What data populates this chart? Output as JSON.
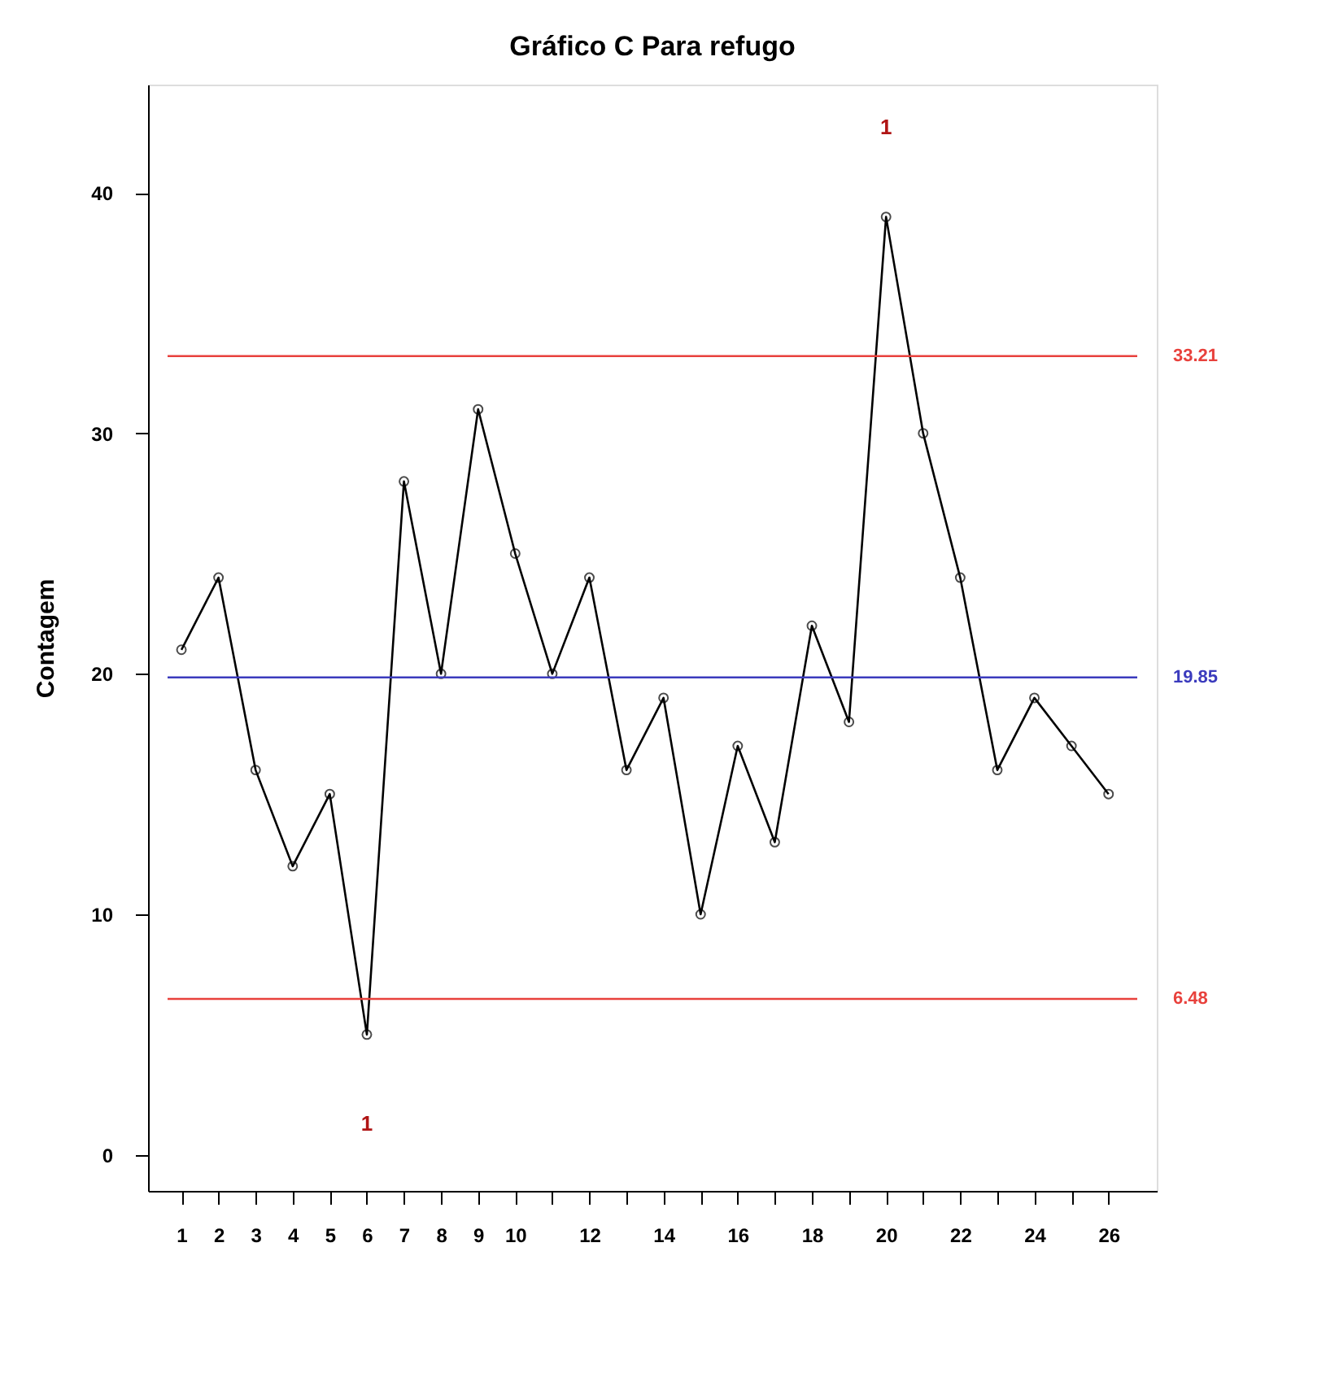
{
  "chart_data": {
    "type": "line",
    "title": "Gráfico C Para refugo",
    "ylabel": "Contagem",
    "x": [
      1,
      2,
      3,
      4,
      5,
      6,
      7,
      8,
      9,
      10,
      11,
      12,
      13,
      14,
      15,
      16,
      17,
      18,
      19,
      20,
      21,
      22,
      23,
      24,
      25,
      26
    ],
    "series": [
      {
        "color": "#000000",
        "values": [
          21,
          24,
          16,
          12,
          15,
          5,
          28,
          20,
          31,
          25,
          20,
          24,
          16,
          19,
          10,
          17,
          13,
          22,
          18,
          39,
          30,
          24,
          16,
          19,
          17,
          15
        ]
      }
    ],
    "xlim": [
      0.1,
      27.3
    ],
    "ylim": [
      -1.5,
      44.5
    ],
    "xticks": [
      1,
      2,
      3,
      4,
      5,
      6,
      7,
      8,
      9,
      10,
      {
        "value": 11,
        "label": null
      },
      12,
      {
        "value": 13,
        "label": null
      },
      14,
      {
        "value": 15,
        "label": null
      },
      16,
      {
        "value": 17,
        "label": null
      },
      18,
      {
        "value": 19,
        "label": null
      },
      20,
      {
        "value": 21,
        "label": null
      },
      22,
      {
        "value": 23,
        "label": null
      },
      24,
      {
        "value": 25,
        "label": null
      },
      26
    ],
    "yticks": [
      0,
      10,
      20,
      30,
      40
    ],
    "ref_lines": [
      {
        "axis": "y",
        "value": 33.21,
        "label": "33.21",
        "color": "#e8413c"
      },
      {
        "axis": "y",
        "value": 19.85,
        "label": "19.85",
        "color": "#3b3bbd"
      },
      {
        "axis": "y",
        "value": 6.48,
        "label": "6.48",
        "color": "#e8413c"
      }
    ],
    "annotations": [
      "1",
      "1"
    ],
    "marker": "circle",
    "grid": false
  }
}
